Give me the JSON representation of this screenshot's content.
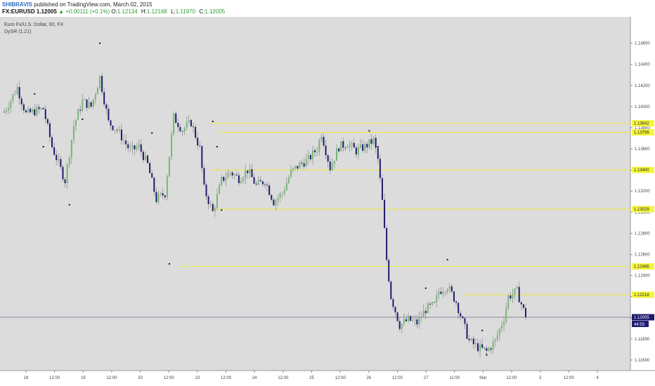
{
  "header": {
    "author": "SHIBRAVIS",
    "published": "published on TradingView.com, March 02, 2015",
    "symbol": "FX:EURUSD",
    "last_price": "1.12005",
    "change_arrow": "▲",
    "change": "+0.00111 (+0.1%)",
    "ohlc": [
      {
        "key": "O:",
        "value": "1.12134"
      },
      {
        "key": "H:",
        "value": "1.12168"
      },
      {
        "key": "L:",
        "value": "1.11970"
      },
      {
        "key": "C:",
        "value": "1.12005"
      }
    ]
  },
  "legend": {
    "title": "Euro Fx/U.S. Dollar, 60, FX",
    "indicator": "DySR (1.21)"
  },
  "colors": {
    "background": "#dcdcdc",
    "up_candle": "#76b776",
    "down_candle": "#1f1a6e",
    "wick": "#8a8a8a",
    "sr_line": "#eaea3a",
    "sr_tag": "#f5f53b",
    "price_tag": "#1f1a6e",
    "dot": "#111111"
  },
  "chart_data": {
    "type": "candlestick",
    "y_range": [
      1.115,
      1.1485
    ],
    "y_ticks": [
      "1.14600",
      "1.14400",
      "1.14200",
      "1.14000",
      "1.13800",
      "1.13600",
      "1.13400",
      "1.13200",
      "1.13000",
      "1.12800",
      "1.12600",
      "1.12400",
      "1.12200",
      "1.12000",
      "1.11800",
      "1.11600"
    ],
    "x_ticks": [
      "18",
      "12:00",
      "19",
      "12:00",
      "20",
      "12:00",
      "23",
      "12:00",
      "24",
      "12:00",
      "25",
      "12:00",
      "26",
      "12:00",
      "27",
      "11:00",
      "Mar",
      "12:00",
      "3",
      "12:00",
      "4"
    ],
    "levels": [
      {
        "label": "1.13842",
        "value": 1.13842
      },
      {
        "label": "1.13756",
        "value": 1.13756
      },
      {
        "label": "1.13400",
        "value": 1.134
      },
      {
        "label": "1.13029",
        "value": 1.13029
      },
      {
        "label": "1.12486",
        "value": 1.12486
      },
      {
        "label": "1.12218",
        "value": 1.12218
      }
    ],
    "current_price": {
      "label": "1.12005",
      "value": 1.12005
    },
    "countdown": "44:53",
    "keypoints": [
      [
        0,
        1.1395
      ],
      [
        6,
        1.1418
      ],
      [
        10,
        1.1393
      ],
      [
        18,
        1.1398
      ],
      [
        22,
        1.1362
      ],
      [
        28,
        1.133
      ],
      [
        32,
        1.1382
      ],
      [
        36,
        1.1405
      ],
      [
        40,
        1.14
      ],
      [
        44,
        1.1428
      ],
      [
        48,
        1.1385
      ],
      [
        52,
        1.1378
      ],
      [
        58,
        1.1358
      ],
      [
        62,
        1.1362
      ],
      [
        66,
        1.1345
      ],
      [
        70,
        1.1312
      ],
      [
        74,
        1.1318
      ],
      [
        78,
        1.139
      ],
      [
        82,
        1.1378
      ],
      [
        86,
        1.1385
      ],
      [
        90,
        1.136
      ],
      [
        92,
        1.1322
      ],
      [
        96,
        1.13
      ],
      [
        100,
        1.133
      ],
      [
        104,
        1.1338
      ],
      [
        108,
        1.1332
      ],
      [
        112,
        1.134
      ],
      [
        116,
        1.1325
      ],
      [
        120,
        1.133
      ],
      [
        124,
        1.131
      ],
      [
        128,
        1.1318
      ],
      [
        132,
        1.1338
      ],
      [
        136,
        1.1345
      ],
      [
        140,
        1.135
      ],
      [
        144,
        1.136
      ],
      [
        146,
        1.1375
      ],
      [
        150,
        1.1342
      ],
      [
        154,
        1.1362
      ],
      [
        158,
        1.1365
      ],
      [
        162,
        1.1358
      ],
      [
        166,
        1.1362
      ],
      [
        170,
        1.1368
      ],
      [
        172,
        1.135
      ],
      [
        174,
        1.131
      ],
      [
        176,
        1.1255
      ],
      [
        178,
        1.122
      ],
      [
        182,
        1.1193
      ],
      [
        186,
        1.1198
      ],
      [
        190,
        1.1195
      ],
      [
        194,
        1.1208
      ],
      [
        198,
        1.1212
      ],
      [
        200,
        1.1225
      ],
      [
        204,
        1.123
      ],
      [
        208,
        1.1215
      ],
      [
        212,
        1.119
      ],
      [
        214,
        1.1178
      ],
      [
        218,
        1.1172
      ],
      [
        222,
        1.1168
      ],
      [
        226,
        1.1178
      ],
      [
        230,
        1.12
      ],
      [
        232,
        1.122
      ],
      [
        236,
        1.1225
      ],
      [
        240,
        1.1201
      ]
    ],
    "signal_dots": [
      [
        14,
        1.1412
      ],
      [
        18,
        1.1362
      ],
      [
        30,
        1.1307
      ],
      [
        44,
        1.146
      ],
      [
        36,
        1.1388
      ],
      [
        68,
        1.1375
      ],
      [
        76,
        1.1251
      ],
      [
        96,
        1.1386
      ],
      [
        98,
        1.1362
      ],
      [
        100,
        1.1302
      ],
      [
        168,
        1.1377
      ],
      [
        172,
        1.1362
      ],
      [
        204,
        1.1255
      ],
      [
        194,
        1.1228
      ],
      [
        220,
        1.1188
      ],
      [
        222,
        1.1165
      ]
    ]
  }
}
